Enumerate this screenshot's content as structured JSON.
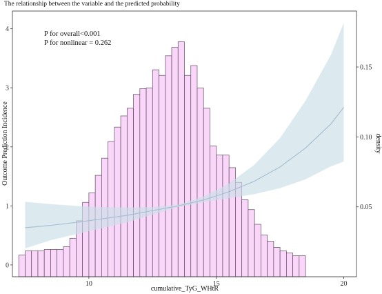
{
  "chart_data": {
    "type": "bar",
    "title": "The relationship between the variable and the predicted probability",
    "xlabel": "cumulative_TyG_WHtR",
    "ylabel": "Outcome Prediction Incidence",
    "y2label": "density",
    "annotations": [
      "P for overall<0.001",
      "P for nonlinear = 0.262"
    ],
    "xlim": [
      7,
      20.5
    ],
    "ylim": [
      -0.2,
      4.3
    ],
    "y2lim": [
      0,
      0.19
    ],
    "x_ticks": [
      10,
      15,
      20
    ],
    "y_ticks": [
      0,
      1,
      2,
      3,
      4
    ],
    "y2_ticks": [
      0.05,
      0.1,
      0.15
    ],
    "grid": false,
    "colors": {
      "histogram_fill": "#fbd6fb",
      "histogram_edge": "#5a4a5a",
      "curve": "#a8bfd2",
      "ci_band": "#c9dfe6"
    },
    "series": [
      {
        "kind": "histogram",
        "y_axis": "right",
        "bin_start": 7.25,
        "bin_width": 0.25,
        "values": [
          0.0155,
          0.0185,
          0.0185,
          0.0185,
          0.0195,
          0.0195,
          0.0195,
          0.0215,
          0.0275,
          0.04,
          0.0532,
          0.06,
          0.0725,
          0.0848,
          0.0967,
          0.107,
          0.115,
          0.1205,
          0.1305,
          0.1345,
          0.135,
          0.148,
          0.144,
          0.158,
          0.164,
          0.168,
          0.144,
          0.151,
          0.135,
          0.1205,
          0.0935,
          0.087,
          0.087,
          0.078,
          0.0675,
          0.055,
          0.048,
          0.0375,
          0.0298,
          0.0254,
          0.021,
          0.0185,
          0.017,
          0.015,
          0.015
        ]
      },
      {
        "kind": "line",
        "y_axis": "left",
        "x": [
          7.5,
          8.5,
          9.5,
          10.5,
          11.5,
          12.5,
          13.5,
          14.5,
          15.5,
          16.5,
          17.5,
          18.5,
          19.5,
          20.0
        ],
        "values": [
          0.63,
          0.67,
          0.72,
          0.78,
          0.84,
          0.92,
          1.0,
          1.1,
          1.24,
          1.42,
          1.66,
          1.98,
          2.39,
          2.67
        ],
        "ci_lower": [
          0.28,
          0.42,
          0.52,
          0.62,
          0.72,
          0.85,
          0.98,
          1.06,
          1.13,
          1.2,
          1.3,
          1.45,
          1.67,
          1.75
        ],
        "ci_upper": [
          1.07,
          1.03,
          1.0,
          0.98,
          0.97,
          0.98,
          1.02,
          1.16,
          1.38,
          1.7,
          2.15,
          2.78,
          3.56,
          4.1
        ]
      }
    ]
  }
}
